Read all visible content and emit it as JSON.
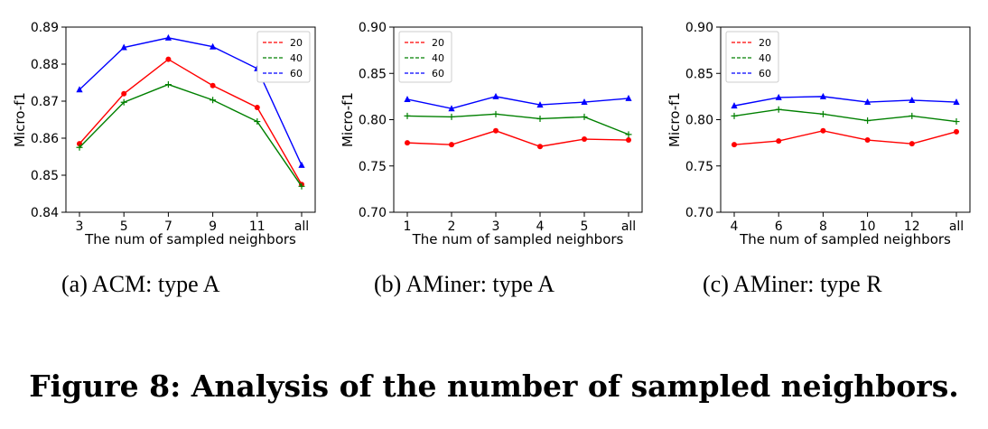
{
  "chart_data": [
    {
      "type": "line",
      "xlabel": "The num of sampled neighbors",
      "ylabel": "Micro-f1",
      "categories": [
        "3",
        "5",
        "7",
        "9",
        "11",
        "all"
      ],
      "ylim": [
        0.84,
        0.89
      ],
      "yticks": [
        "0.84",
        "0.85",
        "0.86",
        "0.87",
        "0.88",
        "0.89"
      ],
      "legend_position": "top-right",
      "series": [
        {
          "name": "20",
          "color": "#ff0000",
          "marker": "circle",
          "values": [
            0.8585,
            0.872,
            0.8813,
            0.8742,
            0.8683,
            0.8475
          ]
        },
        {
          "name": "40",
          "color": "#008000",
          "marker": "plus",
          "values": [
            0.8575,
            0.8697,
            0.8745,
            0.8703,
            0.8645,
            0.847
          ]
        },
        {
          "name": "60",
          "color": "#0000ff",
          "marker": "triangle",
          "values": [
            0.8731,
            0.8845,
            0.8871,
            0.8847,
            0.8788,
            0.8527
          ]
        }
      ]
    },
    {
      "type": "line",
      "xlabel": "The num of sampled neighbors",
      "ylabel": "Micro-f1",
      "categories": [
        "1",
        "2",
        "3",
        "4",
        "5",
        "all"
      ],
      "ylim": [
        0.7,
        0.9
      ],
      "yticks": [
        "0.70",
        "0.75",
        "0.80",
        "0.85",
        "0.90"
      ],
      "legend_position": "top-left",
      "series": [
        {
          "name": "20",
          "color": "#ff0000",
          "marker": "circle",
          "values": [
            0.775,
            0.773,
            0.788,
            0.771,
            0.779,
            0.778
          ]
        },
        {
          "name": "40",
          "color": "#008000",
          "marker": "plus",
          "values": [
            0.804,
            0.803,
            0.806,
            0.801,
            0.803,
            0.784
          ]
        },
        {
          "name": "60",
          "color": "#0000ff",
          "marker": "triangle",
          "values": [
            0.822,
            0.812,
            0.825,
            0.816,
            0.819,
            0.823
          ]
        }
      ]
    },
    {
      "type": "line",
      "xlabel": "The num of sampled neighbors",
      "ylabel": "Micro-f1",
      "categories": [
        "4",
        "6",
        "8",
        "10",
        "12",
        "all"
      ],
      "ylim": [
        0.7,
        0.9
      ],
      "yticks": [
        "0.70",
        "0.75",
        "0.80",
        "0.85",
        "0.90"
      ],
      "legend_position": "top-left",
      "series": [
        {
          "name": "20",
          "color": "#ff0000",
          "marker": "circle",
          "values": [
            0.773,
            0.777,
            0.788,
            0.778,
            0.774,
            0.787
          ]
        },
        {
          "name": "40",
          "color": "#008000",
          "marker": "plus",
          "values": [
            0.804,
            0.811,
            0.806,
            0.799,
            0.804,
            0.798
          ]
        },
        {
          "name": "60",
          "color": "#0000ff",
          "marker": "triangle",
          "values": [
            0.815,
            0.824,
            0.825,
            0.819,
            0.821,
            0.819
          ]
        }
      ]
    }
  ],
  "captions": {
    "a": "(a)  ACM: type A",
    "b": "(b)  AMiner: type A",
    "c": "(c)  AMiner: type R"
  },
  "figure_caption": "Figure 8: Analysis of the number of sampled neighbors."
}
